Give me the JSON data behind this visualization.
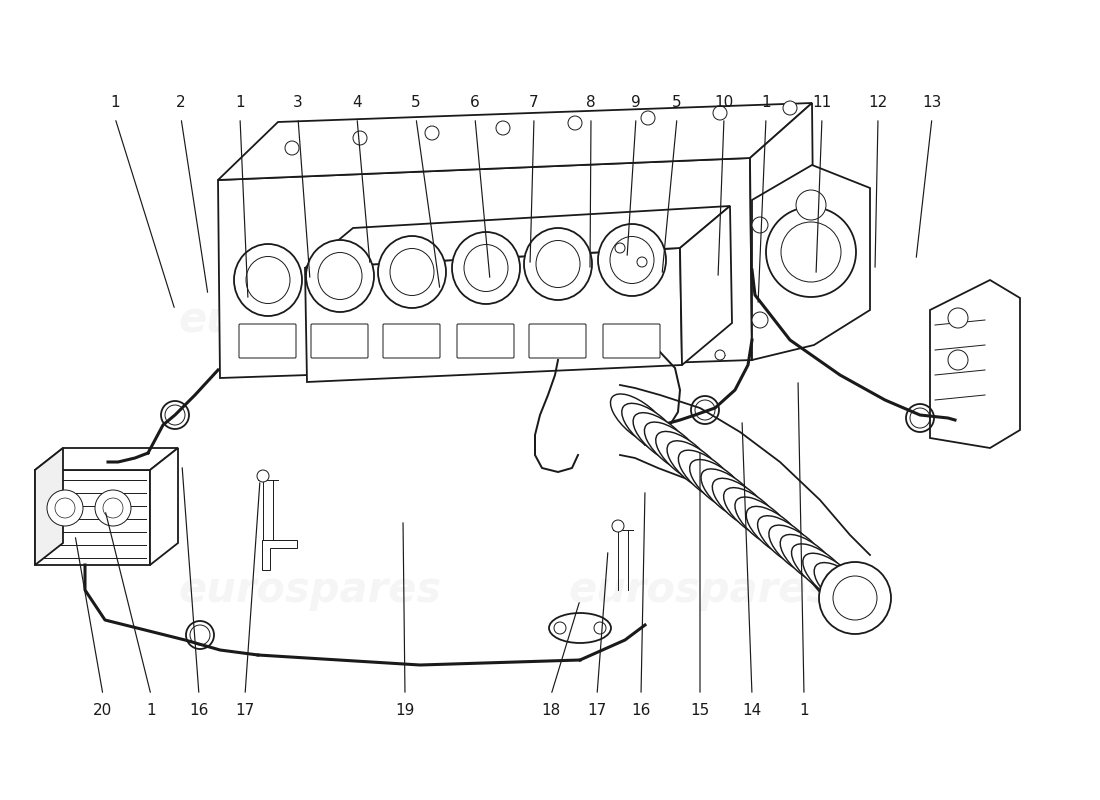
{
  "bg_color": "#ffffff",
  "line_color": "#1a1a1a",
  "lw": 1.3,
  "lwt": 0.7,
  "lwh": 2.2,
  "top_labels": [
    [
      "1",
      115,
      118,
      175,
      310
    ],
    [
      "2",
      181,
      118,
      208,
      295
    ],
    [
      "1",
      240,
      118,
      248,
      300
    ],
    [
      "3",
      298,
      118,
      310,
      280
    ],
    [
      "4",
      357,
      118,
      370,
      265
    ],
    [
      "5",
      416,
      118,
      440,
      290
    ],
    [
      "6",
      475,
      118,
      490,
      280
    ],
    [
      "7",
      534,
      118,
      530,
      265
    ],
    [
      "8",
      591,
      118,
      590,
      270
    ],
    [
      "9",
      636,
      118,
      627,
      258
    ],
    [
      "5",
      677,
      118,
      662,
      275
    ],
    [
      "10",
      724,
      118,
      718,
      278
    ],
    [
      "1",
      766,
      118,
      758,
      305
    ],
    [
      "11",
      822,
      118,
      816,
      275
    ],
    [
      "12",
      878,
      118,
      875,
      270
    ],
    [
      "13",
      932,
      118,
      916,
      260
    ]
  ],
  "bottom_labels": [
    [
      "20",
      103,
      695,
      75,
      535
    ],
    [
      "1",
      151,
      695,
      105,
      510
    ],
    [
      "16",
      199,
      695,
      182,
      465
    ],
    [
      "17",
      245,
      695,
      260,
      480
    ],
    [
      "19",
      405,
      695,
      403,
      520
    ],
    [
      "18",
      551,
      695,
      580,
      600
    ],
    [
      "17",
      597,
      695,
      608,
      550
    ],
    [
      "16",
      641,
      695,
      645,
      490
    ],
    [
      "15",
      700,
      695,
      700,
      450
    ],
    [
      "14",
      752,
      695,
      742,
      420
    ],
    [
      "1",
      804,
      695,
      798,
      380
    ]
  ],
  "label_fontsize": 11
}
